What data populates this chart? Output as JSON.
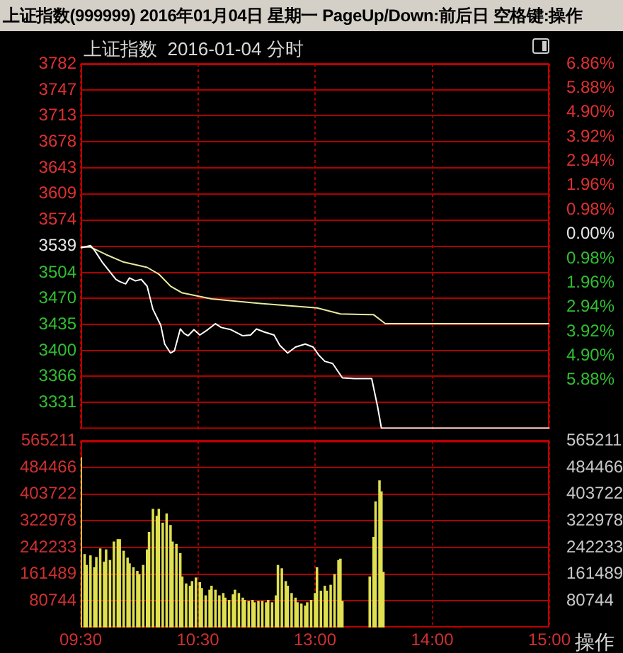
{
  "chart_data": [
    {
      "type": "line",
      "title": "上证指数(999999) 2016年01月04日 星期一 PageUp/Down:前后日 空格键:操作",
      "subtitle": "上证指数  2016-01-04 分时",
      "categories": [
        null,
        null,
        null,
        null,
        null,
        null,
        null,
        null,
        null,
        null,
        null,
        null,
        null,
        null,
        null,
        null,
        null,
        null,
        null,
        null,
        null,
        null,
        null,
        null,
        null,
        null,
        null,
        null,
        null,
        null,
        null,
        null,
        null,
        null,
        null,
        null,
        null,
        null,
        null,
        null,
        null,
        null,
        null,
        null,
        null,
        null,
        null,
        null,
        null,
        null,
        null,
        null,
        null,
        null,
        null,
        null,
        null,
        null,
        null,
        null,
        null,
        null,
        null,
        null,
        null,
        null,
        null,
        null,
        null,
        null,
        null,
        null,
        null,
        null,
        null,
        null,
        null,
        null,
        null,
        null,
        null,
        null,
        null,
        null,
        null,
        null,
        null,
        null,
        null,
        null,
        null,
        null,
        null,
        null,
        null,
        null,
        null,
        null,
        null,
        null,
        null,
        null,
        null,
        null,
        null,
        null,
        null,
        null,
        null,
        null,
        null,
        null,
        null,
        null,
        null,
        null,
        null,
        null,
        null,
        null,
        null,
        null,
        null,
        null,
        null,
        null,
        null,
        null,
        null,
        null,
        null,
        null,
        null,
        null,
        null,
        null,
        null,
        null,
        null,
        null,
        null,
        null,
        null,
        null,
        null,
        null,
        null,
        null,
        null,
        null,
        null,
        null,
        null,
        null,
        null,
        null,
        null,
        null,
        null,
        null,
        null,
        null,
        null,
        null,
        null,
        null,
        null,
        null,
        null,
        null,
        null,
        null,
        null,
        null,
        null,
        null,
        null,
        null,
        null,
        null,
        null,
        null,
        null,
        null,
        null,
        null,
        null,
        null,
        null,
        null,
        null,
        null,
        null,
        null,
        null,
        null,
        null,
        null,
        null,
        null,
        null,
        null,
        null,
        null,
        null,
        null,
        null,
        null,
        null,
        null,
        null,
        null,
        null,
        null,
        null,
        null,
        null,
        null,
        null,
        null,
        null,
        null,
        null,
        null,
        null,
        null,
        null,
        null,
        null,
        null,
        null,
        null,
        null,
        null,
        null,
        null,
        null,
        null,
        null,
        null,
        null
      ],
      "ylim": [
        3296,
        3782
      ],
      "yticks": [
        3331,
        3366,
        3400,
        3435,
        3470,
        3504,
        3539,
        3574,
        3609,
        3643,
        3678,
        3713,
        3747,
        3782
      ],
      "y2lim": [
        -7.84,
        6.86
      ],
      "y2ticks": [
        {
          "value": -5.88,
          "label": "5.88%"
        },
        {
          "value": -4.9,
          "label": "4.90%"
        },
        {
          "value": -3.92,
          "label": "3.92%"
        },
        {
          "value": -2.94,
          "label": "2.94%"
        },
        {
          "value": -1.96,
          "label": "1.96%"
        },
        {
          "value": -0.98,
          "label": "0.98%"
        },
        {
          "value": 0,
          "label": "0.00%"
        },
        {
          "value": 0.98,
          "label": "0.98%"
        },
        {
          "value": 1.96,
          "label": "1.96%"
        },
        {
          "value": 2.94,
          "label": "2.94%"
        },
        {
          "value": 3.92,
          "label": "3.92%"
        },
        {
          "value": 4.9,
          "label": "4.90%"
        },
        {
          "value": 5.88,
          "label": "5.88%"
        },
        {
          "value": 6.86,
          "label": "6.86%"
        }
      ],
      "grid": true,
      "legend": false,
      "tick_labels": "y",
      "series": [
        {
          "color": "#ffffff",
          "values": [
            3537,
            null,
            null,
            null,
            null,
            3540,
            null,
            3534,
            null,
            null,
            null,
            3518,
            null,
            null,
            null,
            null,
            null,
            null,
            3495,
            null,
            3492,
            null,
            null,
            3489,
            null,
            3497,
            null,
            null,
            3493,
            null,
            null,
            3495,
            null,
            null,
            3486,
            null,
            null,
            3455,
            null,
            null,
            null,
            3434,
            null,
            3409,
            null,
            null,
            3397,
            null,
            3400,
            null,
            null,
            3429,
            null,
            3423,
            null,
            3420,
            null,
            null,
            3428,
            null,
            null,
            3421,
            null,
            null,
            null,
            3428,
            null,
            null,
            null,
            3436,
            null,
            null,
            3431,
            null,
            null,
            null,
            null,
            3428,
            null,
            null,
            null,
            null,
            null,
            3420,
            null,
            null,
            null,
            3421,
            null,
            null,
            3429,
            null,
            null,
            null,
            3425,
            null,
            null,
            null,
            null,
            3421,
            null,
            null,
            3407,
            null,
            null,
            null,
            3397,
            null,
            null,
            null,
            3405,
            null,
            null,
            null,
            null,
            3409,
            null,
            null,
            null,
            3405,
            null,
            null,
            3394,
            null,
            null,
            3386,
            null,
            null,
            null,
            3383,
            null,
            null,
            null,
            null,
            3364,
            null,
            null,
            null,
            null,
            null,
            3363,
            null,
            null,
            null,
            null,
            null,
            null,
            null,
            null,
            3363,
            null,
            null,
            3326,
            null,
            3297,
            null,
            null,
            null,
            null,
            null,
            null,
            null,
            null,
            null,
            null,
            null,
            null,
            null,
            null,
            null,
            null,
            null,
            null,
            null,
            null,
            null,
            null,
            null,
            null,
            null,
            null,
            null,
            null,
            null,
            null,
            null,
            null,
            null,
            null,
            null,
            null,
            null,
            null,
            null,
            null,
            null,
            null,
            null,
            null,
            null,
            null,
            null,
            null,
            null,
            null,
            null,
            null,
            null,
            null,
            null,
            null,
            null,
            null,
            null,
            null,
            null,
            null,
            null,
            null,
            null,
            null,
            null,
            null,
            null,
            null,
            null,
            null,
            null,
            null,
            null,
            null,
            null,
            null,
            null,
            null,
            null,
            null,
            null,
            null,
            null,
            3297
          ]
        },
        {
          "color": "#e8e8a0",
          "values": [
            3538,
            null,
            null,
            null,
            null,
            3538,
            null,
            null,
            null,
            null,
            null,
            null,
            null,
            3528,
            null,
            null,
            null,
            null,
            null,
            null,
            null,
            null,
            3518,
            null,
            null,
            null,
            null,
            null,
            null,
            null,
            null,
            null,
            null,
            null,
            3511,
            null,
            null,
            null,
            null,
            null,
            3502,
            null,
            null,
            null,
            null,
            null,
            3486,
            null,
            null,
            null,
            null,
            null,
            3477,
            null,
            null,
            null,
            null,
            null,
            null,
            null,
            null,
            null,
            null,
            null,
            null,
            null,
            null,
            3469,
            null,
            null,
            null,
            null,
            null,
            null,
            null,
            null,
            null,
            null,
            null,
            null,
            null,
            null,
            null,
            null,
            null,
            null,
            null,
            null,
            null,
            null,
            null,
            null,
            3463,
            null,
            null,
            null,
            null,
            null,
            null,
            null,
            null,
            null,
            null,
            null,
            null,
            null,
            null,
            null,
            null,
            null,
            null,
            null,
            null,
            null,
            null,
            null,
            null,
            null,
            null,
            null,
            null,
            3457,
            null,
            null,
            null,
            null,
            null,
            null,
            null,
            null,
            null,
            null,
            null,
            3449,
            null,
            null,
            null,
            null,
            null,
            null,
            null,
            null,
            null,
            null,
            null,
            null,
            null,
            null,
            null,
            null,
            3448,
            null,
            null,
            null,
            null,
            null,
            3436,
            null,
            null,
            null,
            null,
            null,
            null,
            null,
            null,
            null,
            null,
            null,
            null,
            null,
            null,
            null,
            null,
            null,
            null,
            null,
            null,
            null,
            null,
            null,
            null,
            null,
            null,
            null,
            null,
            null,
            null,
            null,
            null,
            null,
            null,
            null,
            null,
            null,
            null,
            null,
            null,
            null,
            null,
            null,
            null,
            null,
            null,
            null,
            null,
            null,
            null,
            null,
            null,
            null,
            null,
            null,
            null,
            null,
            null,
            null,
            null,
            null,
            null,
            null,
            null,
            null,
            null,
            null,
            null,
            null,
            null,
            null,
            null,
            null,
            null,
            null,
            null,
            null,
            null,
            null,
            null,
            null,
            null,
            null,
            3436
          ]
        }
      ]
    },
    {
      "type": "bar",
      "categories": [
        "09:30",
        null,
        null,
        null,
        null,
        null,
        null,
        null,
        null,
        null,
        null,
        null,
        null,
        null,
        null,
        null,
        null,
        null,
        null,
        null,
        null,
        null,
        null,
        null,
        null,
        null,
        null,
        null,
        null,
        null,
        null,
        null,
        null,
        null,
        null,
        null,
        null,
        null,
        null,
        null,
        null,
        null,
        null,
        null,
        null,
        null,
        null,
        null,
        null,
        null,
        null,
        null,
        null,
        null,
        null,
        null,
        null,
        null,
        null,
        null,
        "10:30",
        null,
        null,
        null,
        null,
        null,
        null,
        null,
        null,
        null,
        null,
        null,
        null,
        null,
        null,
        null,
        null,
        null,
        null,
        null,
        null,
        null,
        null,
        null,
        null,
        null,
        null,
        null,
        null,
        null,
        null,
        null,
        null,
        null,
        null,
        null,
        null,
        null,
        null,
        null,
        null,
        null,
        null,
        null,
        null,
        null,
        null,
        null,
        null,
        null,
        null,
        null,
        null,
        null,
        null,
        null,
        null,
        null,
        null,
        null,
        "13:00",
        null,
        null,
        null,
        null,
        null,
        null,
        null,
        null,
        null,
        null,
        null,
        null,
        null,
        null,
        null,
        null,
        null,
        null,
        null,
        null,
        null,
        null,
        null,
        null,
        null,
        null,
        null,
        null,
        null,
        null,
        null,
        null,
        null,
        null,
        null,
        null,
        null,
        null,
        null,
        null,
        null,
        null,
        null,
        null,
        null,
        null,
        null,
        null,
        null,
        null,
        null,
        null,
        null,
        null,
        null,
        null,
        null,
        null,
        null,
        "14:00",
        null,
        null,
        null,
        null,
        null,
        null,
        null,
        null,
        null,
        null,
        null,
        null,
        null,
        null,
        null,
        null,
        null,
        null,
        null,
        null,
        null,
        null,
        null,
        null,
        null,
        null,
        null,
        null,
        null,
        null,
        null,
        null,
        null,
        null,
        null,
        null,
        null,
        null,
        null,
        null,
        null,
        null,
        null,
        null,
        null,
        null,
        null,
        null,
        null,
        null,
        null,
        null,
        null,
        null,
        null,
        null,
        null,
        null,
        null,
        "15:00"
      ],
      "ylim": [
        0,
        565211
      ],
      "yticks": [
        80744,
        161489,
        242233,
        322978,
        403722,
        484466,
        565211
      ],
      "y2lim": [
        0,
        565211
      ],
      "y2ticks": [
        80744,
        161489,
        242233,
        322978,
        403722,
        484466,
        565211
      ],
      "grid": true,
      "legend": false,
      "annotations": [
        "操作"
      ],
      "series": [
        {
          "color": "#e0e050",
          "values": [
            514000,
            null,
            221000,
            188000,
            null,
            217000,
            null,
            181000,
            212000,
            null,
            238000,
            null,
            198000,
            235000,
            null,
            203000,
            null,
            259000,
            null,
            266000,
            266000,
            null,
            231000,
            null,
            210000,
            193000,
            null,
            181000,
            null,
            170000,
            160000,
            null,
            188000,
            null,
            235000,
            288000,
            null,
            358000,
            null,
            337000,
            358000,
            null,
            316000,
            null,
            344000,
            null,
            309000,
            259000,
            null,
            252000,
            null,
            224000,
            153000,
            null,
            132000,
            null,
            125000,
            139000,
            null,
            150000,
            null,
            136000,
            118000,
            null,
            96000,
            null,
            113000,
            125000,
            null,
            113000,
            null,
            96000,
            null,
            103000,
            89000,
            null,
            82000,
            null,
            99000,
            113000,
            null,
            103000,
            null,
            89000,
            82000,
            null,
            79000,
            null,
            82000,
            75000,
            null,
            79000,
            null,
            79000,
            null,
            75000,
            82000,
            null,
            75000,
            null,
            96000,
            188000,
            null,
            178000,
            null,
            139000,
            125000,
            null,
            103000,
            null,
            89000,
            75000,
            null,
            71000,
            null,
            65000,
            75000,
            null,
            82000,
            null,
            103000,
            181000,
            null,
            110000,
            null,
            125000,
            110000,
            null,
            128000,
            null,
            160000,
            null,
            203000,
            207000,
            79000,
            null,
            null,
            null,
            null,
            null,
            null,
            null,
            null,
            null,
            null,
            null,
            null,
            null,
            153000,
            null,
            273000,
            380000,
            null,
            444000,
            411000,
            167000,
            null,
            null,
            null,
            null,
            null,
            null,
            null,
            null,
            null,
            null,
            null,
            null,
            null,
            null,
            null,
            null,
            null,
            null,
            null,
            null,
            null,
            null,
            null,
            null,
            null,
            null,
            null,
            null,
            null,
            null,
            null,
            null,
            null,
            null,
            null,
            null,
            null,
            null,
            null,
            null,
            null,
            null,
            null,
            null,
            null,
            null,
            null,
            null,
            null,
            null,
            null,
            null,
            null,
            null,
            null,
            null,
            null,
            null,
            null,
            null,
            null,
            null,
            null,
            null,
            null,
            null,
            null,
            null,
            null,
            null,
            null,
            null,
            null,
            null,
            null,
            null,
            null,
            null,
            null,
            null,
            null,
            null,
            null,
            null,
            null
          ]
        }
      ]
    }
  ]
}
